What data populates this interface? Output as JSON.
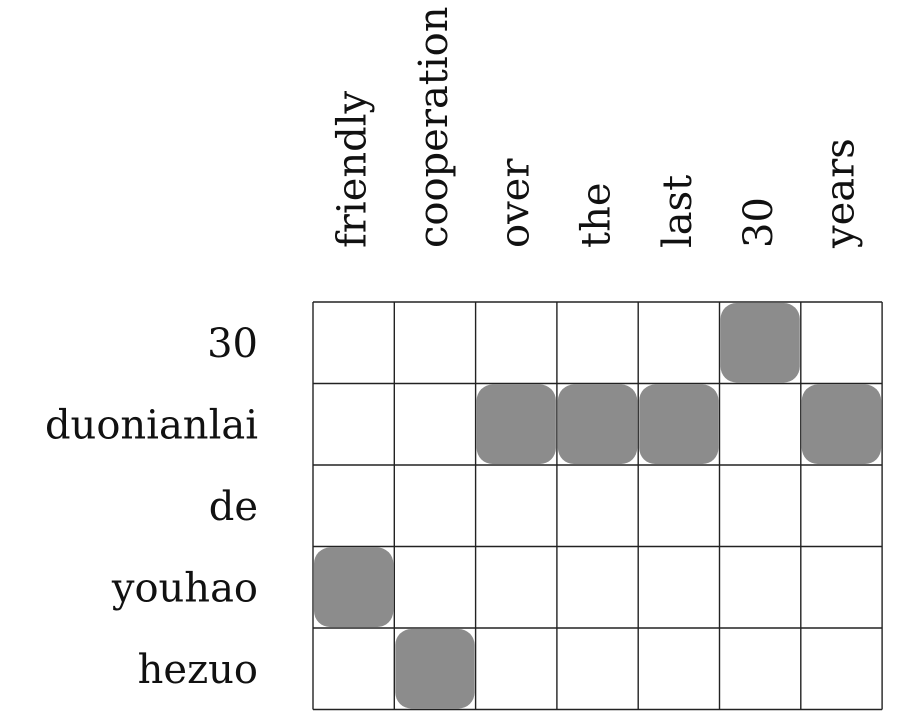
{
  "alignment": {
    "source_words": [
      "30",
      "duonianlai",
      "de",
      "youhao",
      "hezuo"
    ],
    "target_words": [
      "friendly",
      "cooperation",
      "over",
      "the",
      "last",
      "30",
      "years"
    ],
    "links": [
      {
        "source": "30",
        "target": "30"
      },
      {
        "source": "duonianlai",
        "target": "over"
      },
      {
        "source": "duonianlai",
        "target": "the"
      },
      {
        "source": "duonianlai",
        "target": "last"
      },
      {
        "source": "duonianlai",
        "target": "years"
      },
      {
        "source": "youhao",
        "target": "friendly"
      },
      {
        "source": "hezuo",
        "target": "cooperation"
      }
    ],
    "colors": {
      "link_fill": "#8c8c8c",
      "grid": "#222222",
      "text": "#111111",
      "background": "#ffffff"
    }
  }
}
